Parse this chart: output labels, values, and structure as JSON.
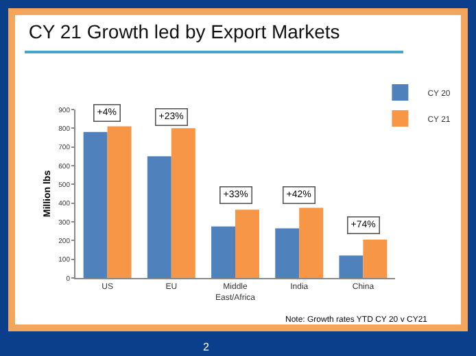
{
  "chart_data": {
    "type": "bar",
    "title": "CY 21 Growth led by Export Markets",
    "ylabel": "Million lbs",
    "categories": [
      "US",
      "EU",
      "Middle East/Africa",
      "India",
      "China"
    ],
    "series": [
      {
        "name": "CY 20",
        "color": "#4f81bd",
        "values": [
          780,
          650,
          275,
          265,
          120
        ]
      },
      {
        "name": "CY 21",
        "color": "#f79646",
        "values": [
          810,
          800,
          365,
          375,
          205
        ]
      }
    ],
    "ylim": [
      0,
      900
    ],
    "yticks": [
      0,
      100,
      200,
      300,
      400,
      500,
      600,
      700,
      800,
      900
    ],
    "grid": false,
    "legend": "top right",
    "annotations": [
      {
        "text": "+4%",
        "x": "US",
        "y": 880
      },
      {
        "text": "+23%",
        "x": "EU",
        "y": 860
      },
      {
        "text": "+33%",
        "x": "Middle East/Africa",
        "y": 440
      },
      {
        "text": "+42%",
        "x": "India",
        "y": 440
      },
      {
        "text": "+74%",
        "x": "China",
        "y": 280
      },
      "Note: Growth rates YTD CY 20 v CY21",
      "2"
    ]
  }
}
